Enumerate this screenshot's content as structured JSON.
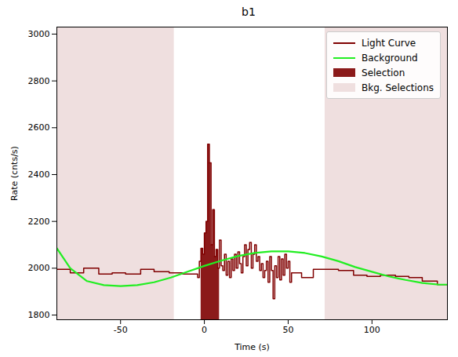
{
  "chart_data": {
    "type": "line",
    "title": "b1",
    "x_label": "Time (s)",
    "y_label": "Rate (cnts/s)",
    "xlim": [
      -88,
      145
    ],
    "xticks": [
      -50,
      0,
      50,
      100
    ],
    "ylim": [
      1780,
      3030
    ],
    "yticks": [
      1800,
      2000,
      2200,
      2400,
      2600,
      2800,
      3000
    ],
    "legend": "upper right",
    "grid": false,
    "series": [
      {
        "name": "Light Curve",
        "type": "line",
        "line_style": "step",
        "color": "#800000",
        "x": [
          -88,
          -80,
          -72,
          -63,
          -55,
          -47,
          -38,
          -30,
          -21,
          -13,
          -5,
          -4,
          -3,
          -2,
          -1,
          0,
          1,
          2,
          3,
          4,
          5,
          6,
          7,
          8,
          9,
          10,
          11,
          12,
          13,
          14,
          15,
          16,
          17,
          18,
          19,
          20,
          21,
          22,
          23,
          24,
          25,
          26,
          27,
          28,
          29,
          30,
          31,
          32,
          33,
          34,
          35,
          36,
          37,
          38,
          39,
          40,
          41,
          42,
          43,
          44,
          45,
          46,
          47,
          48,
          49,
          50,
          51,
          52,
          58,
          65,
          72,
          80,
          89,
          97,
          105,
          114,
          122,
          130,
          139,
          145
        ],
        "values": [
          1995,
          1980,
          2000,
          1975,
          1980,
          1975,
          1995,
          1985,
          1980,
          1975,
          1975,
          1960,
          2030,
          2085,
          2060,
          2150,
          2200,
          2530,
          2450,
          2100,
          2250,
          2050,
          2080,
          2000,
          2120,
          2010,
          1990,
          2060,
          1970,
          2030,
          1960,
          2040,
          1990,
          2060,
          2000,
          2070,
          2020,
          1980,
          2050,
          2100,
          2010,
          2080,
          2110,
          2000,
          2060,
          2100,
          2030,
          2050,
          1990,
          2020,
          1960,
          1990,
          2030,
          1940,
          2050,
          1990,
          1870,
          2010,
          1960,
          2050,
          1950,
          2040,
          1970,
          2060,
          2000,
          2030,
          1940,
          1980,
          1960,
          1995,
          1995,
          1990,
          1970,
          1965,
          1970,
          1965,
          1960,
          1945,
          1930,
          1930
        ]
      },
      {
        "name": "Background",
        "type": "line",
        "line_style": "solid",
        "color": "#22ee22",
        "x": [
          -88,
          -80,
          -70,
          -60,
          -50,
          -40,
          -30,
          -20,
          -10,
          0,
          10,
          20,
          30,
          40,
          50,
          60,
          70,
          80,
          90,
          100,
          110,
          120,
          130,
          140,
          145
        ],
        "values": [
          2085,
          2000,
          1945,
          1928,
          1924,
          1928,
          1940,
          1960,
          1985,
          2010,
          2032,
          2052,
          2065,
          2072,
          2072,
          2065,
          2050,
          2030,
          2005,
          1985,
          1965,
          1950,
          1937,
          1930,
          1930
        ]
      },
      {
        "name": "Selection",
        "type": "fill",
        "color": "#8b1a1a",
        "ranges": [
          [
            -2,
            9
          ]
        ]
      },
      {
        "name": "Bkg. Selections",
        "type": "span",
        "color": "#efdfdf",
        "ranges": [
          [
            -88,
            -18
          ],
          [
            72,
            145
          ]
        ]
      }
    ]
  }
}
